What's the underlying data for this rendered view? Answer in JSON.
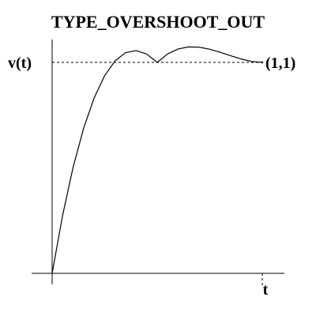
{
  "chart_data": {
    "type": "line",
    "title": "TYPE_OVERSHOOT_OUT",
    "xlabel": "t",
    "ylabel": "v(t)",
    "end_point_label": "(1,1)",
    "xlim": [
      0,
      1
    ],
    "ylim": [
      0,
      1.1
    ],
    "grid": false,
    "legend": "none",
    "series": [
      {
        "x": [
          0,
          0.05,
          0.1,
          0.15,
          0.2,
          0.25,
          0.3,
          0.35,
          0.4,
          0.45,
          0.5,
          0.55,
          0.6,
          0.65,
          0.7,
          0.75,
          0.8,
          0.85,
          0.9,
          0.95,
          1.0
        ],
        "y": [
          0,
          0.2755,
          0.504,
          0.6885,
          0.832,
          0.9375,
          1.008,
          1.0465,
          1.056,
          1.0395,
          1.0,
          1.0405,
          1.064,
          1.0735,
          1.072,
          1.0625,
          1.048,
          1.0315,
          1.016,
          1.0045,
          1.0
        ]
      }
    ],
    "reference_lines": [
      {
        "orientation": "horizontal",
        "y": 1,
        "style": "dashed"
      },
      {
        "orientation": "vertical",
        "x": 1,
        "style": "dashed"
      }
    ],
    "colors": {
      "curve": "#000000",
      "axes": "#000000"
    }
  }
}
